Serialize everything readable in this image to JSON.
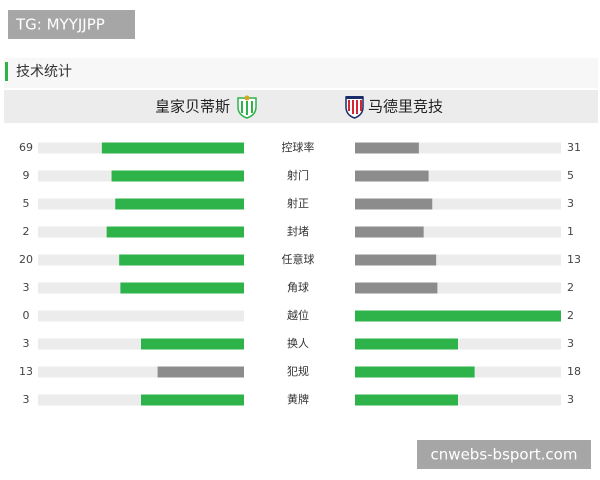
{
  "badge": "TG: MYYJJPP",
  "section_title": "技术统计",
  "teams": [
    "皇家贝蒂斯",
    "马德里竞技"
  ],
  "stats": [
    {
      "label": "控球率",
      "home": 69,
      "away": 31
    },
    {
      "label": "射门",
      "home": 9,
      "away": 5
    },
    {
      "label": "射正",
      "home": 5,
      "away": 3
    },
    {
      "label": "封堵",
      "home": 2,
      "away": 1
    },
    {
      "label": "任意球",
      "home": 20,
      "away": 13
    },
    {
      "label": "角球",
      "home": 3,
      "away": 2
    },
    {
      "label": "越位",
      "home": 0,
      "away": 2
    },
    {
      "label": "换人",
      "home": 3,
      "away": 3
    },
    {
      "label": "犯规",
      "home": 13,
      "away": 18
    },
    {
      "label": "黄牌",
      "home": 3,
      "away": 3
    }
  ],
  "watermark": "cnwebs-bsport.com"
}
